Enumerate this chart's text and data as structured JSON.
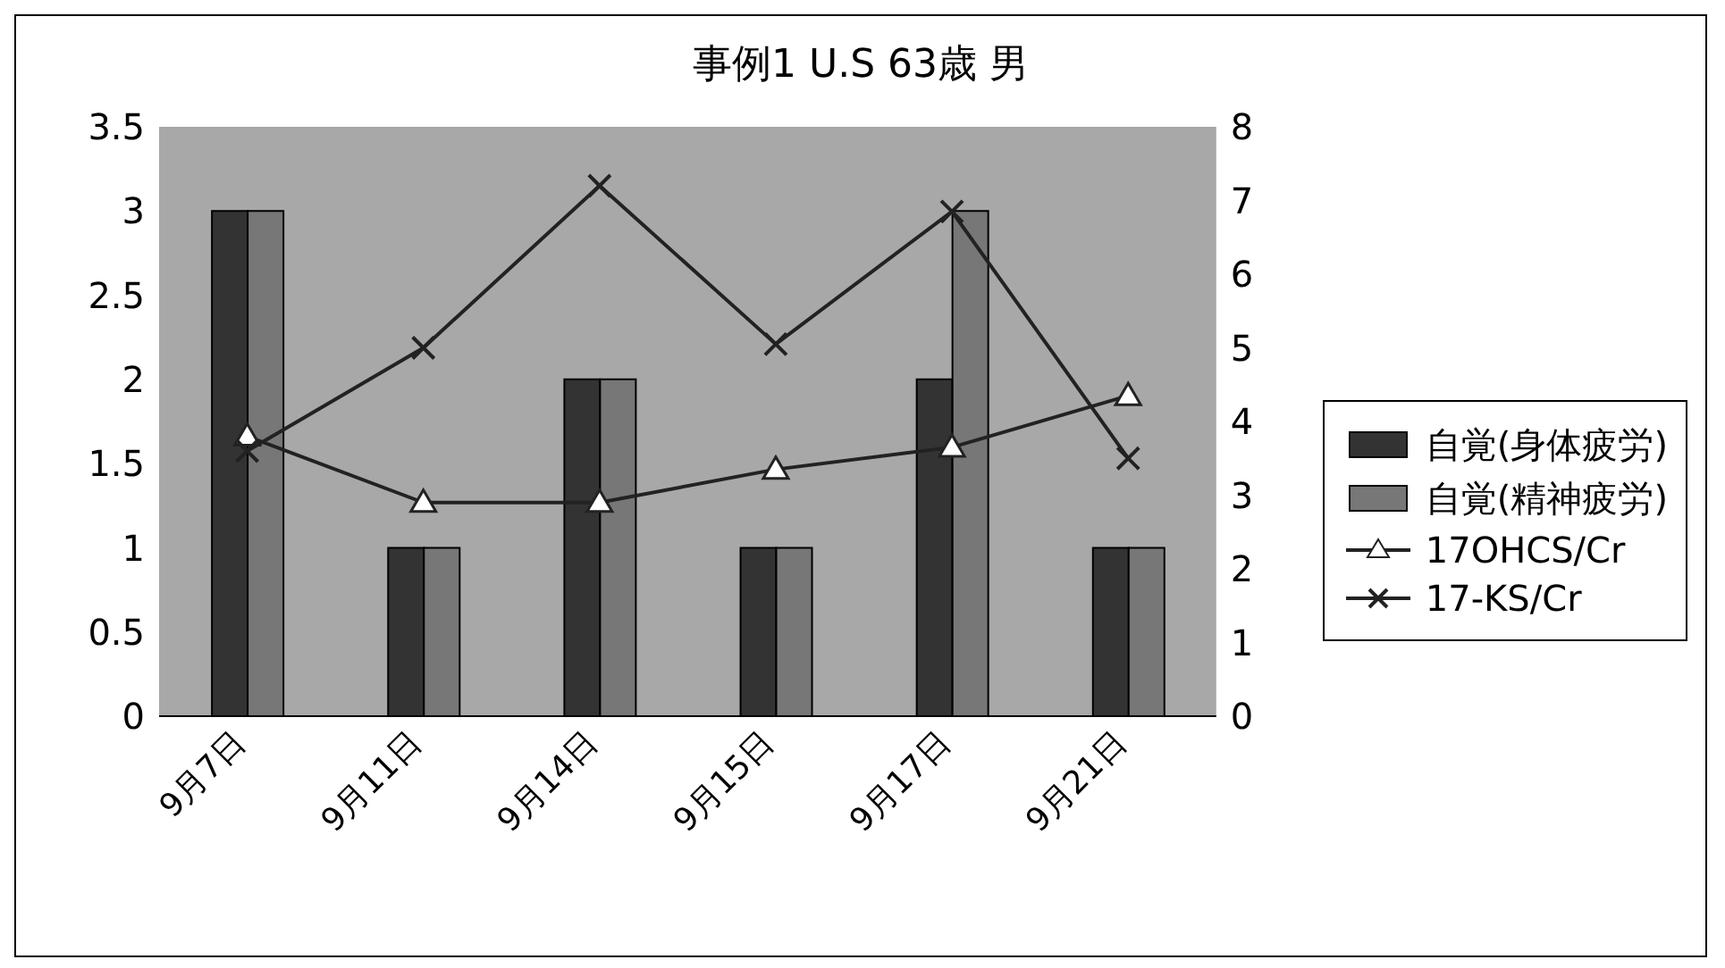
{
  "chart_data": {
    "type": "bar",
    "title": "事例1 U.S 63歳 男",
    "categories": [
      "9月7日",
      "9月11日",
      "9月14日",
      "9月15日",
      "9月17日",
      "9月21日"
    ],
    "series": [
      {
        "name": "自覚(身体疲労)",
        "color": "#333333",
        "values": [
          3,
          1,
          2,
          1,
          2,
          1
        ]
      },
      {
        "name": "自覚(精神疲労)",
        "color": "#777777",
        "values": [
          3,
          1,
          2,
          1,
          3,
          1
        ]
      },
      {
        "name": "17OHCS/Cr",
        "type": "line",
        "axis": "y2",
        "marker": "triangle",
        "color": "#222222",
        "values": [
          3.8,
          2.9,
          2.9,
          3.35,
          3.65,
          4.35
        ]
      },
      {
        "name": "17-KS/Cr",
        "type": "line",
        "axis": "y2",
        "marker": "cross",
        "color": "#222222",
        "values": [
          3.6,
          5.0,
          7.2,
          5.05,
          6.85,
          3.5
        ]
      }
    ],
    "ylim": [
      0,
      3.5
    ],
    "yticks": [
      0,
      0.5,
      1,
      1.5,
      2,
      2.5,
      3,
      3.5
    ],
    "y2lim": [
      0,
      8
    ],
    "y2ticks": [
      0,
      1,
      2,
      3,
      4,
      5,
      6,
      7,
      8
    ],
    "grid": false,
    "legend": "right"
  }
}
